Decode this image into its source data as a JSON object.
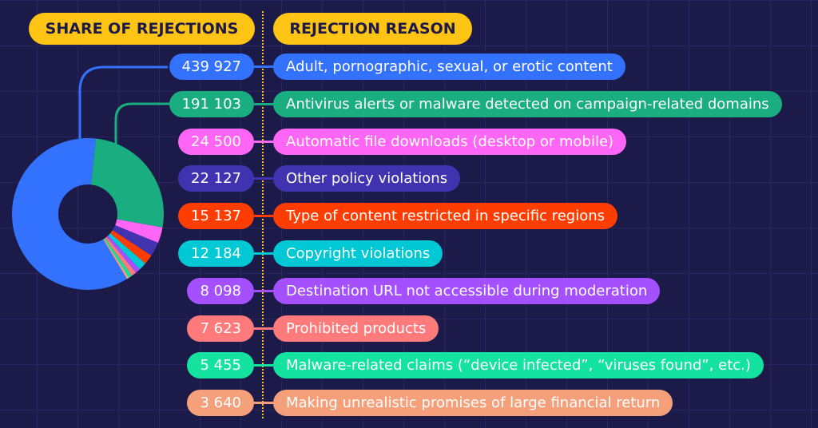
{
  "headers": {
    "share": "SHARE OF REJECTIONS",
    "reason": "REJECTION REASON"
  },
  "chart_data": {
    "type": "pie",
    "style": "donut",
    "categories": [
      "Adult, pornographic, sexual, or erotic content",
      "Antivirus alerts or malware detected on campaign-related domains",
      "Automatic file downloads (desktop or mobile)",
      "Other policy violations",
      "Type of content restricted in specific regions",
      "Copyright violations",
      "Destination URL not accessible during moderation",
      "Prohibited products",
      "Malware-related claims (“device infected”, “viruses found”, etc.)",
      "Making unrealistic promises of large financial return"
    ],
    "values": [
      439927,
      191103,
      24500,
      22127,
      15137,
      12184,
      8098,
      7623,
      5455,
      3640
    ],
    "value_labels": [
      "439 927",
      "191 103",
      "24 500",
      "22 127",
      "15 137",
      "12 184",
      "8 098",
      "7 623",
      "5 455",
      "3 640"
    ],
    "colors": [
      "#3371ff",
      "#19ad80",
      "#ff66f5",
      "#4133b0",
      "#ff3d00",
      "#00c8d4",
      "#a550ff",
      "#ff7a7a",
      "#14e3a0",
      "#f5a07a"
    ]
  }
}
